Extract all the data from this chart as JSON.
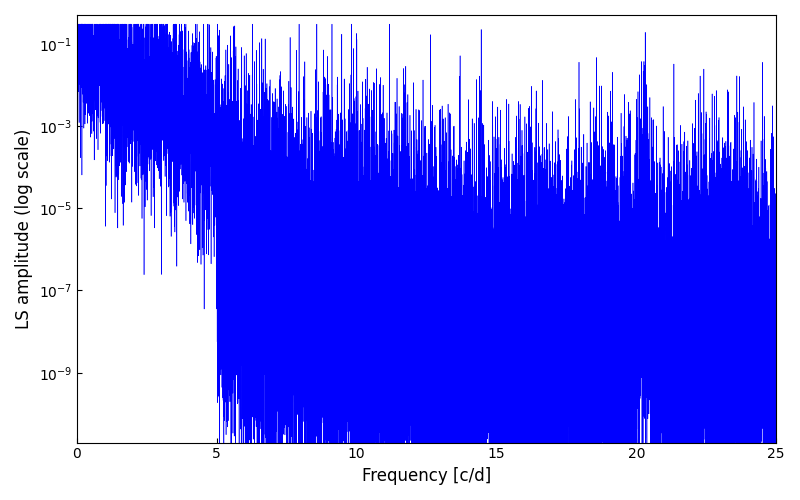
{
  "xlabel": "Frequency [c/d]",
  "ylabel": "LS amplitude (log scale)",
  "xlim": [
    0,
    25
  ],
  "ylim_log": [
    2e-11,
    0.5
  ],
  "yticks": [
    1e-09,
    1e-07,
    1e-05,
    0.001,
    0.1
  ],
  "xticks": [
    0,
    5,
    10,
    15,
    20,
    25
  ],
  "line_color": "#0000ff",
  "linewidth": 0.4,
  "figsize": [
    8.0,
    5.0
  ],
  "dpi": 100,
  "n_points": 12000,
  "freq_max": 25.0,
  "seed": 17,
  "background_color": "#ffffff"
}
